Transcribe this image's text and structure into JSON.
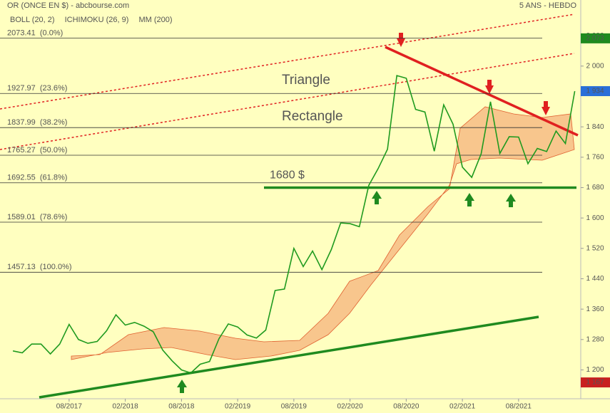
{
  "chart_data": {
    "type": "line",
    "title": "OR (ONCE EN $) - abcbourse.com",
    "subtitle": "5 ANS - HEBDO",
    "indicators": [
      {
        "name": "BOLL (20, 2)",
        "color": "#2a3fcf"
      },
      {
        "name": "ICHIMOKU (26, 9)",
        "color": "#2a3fcf"
      },
      {
        "name": "MM (200)",
        "color": "#e02020"
      }
    ],
    "x": [
      "2017-02",
      "2017-03",
      "2017-04",
      "2017-05",
      "2017-06",
      "2017-07",
      "2017-08",
      "2017-09",
      "2017-10",
      "2017-11",
      "2017-12",
      "2018-01",
      "2018-02",
      "2018-03",
      "2018-04",
      "2018-05",
      "2018-06",
      "2018-07",
      "2018-08",
      "2018-09",
      "2018-10",
      "2018-11",
      "2018-12",
      "2019-01",
      "2019-02",
      "2019-03",
      "2019-04",
      "2019-05",
      "2019-06",
      "2019-07",
      "2019-08",
      "2019-09",
      "2019-10",
      "2019-11",
      "2019-12",
      "2020-01",
      "2020-02",
      "2020-03",
      "2020-04",
      "2020-05",
      "2020-06",
      "2020-07",
      "2020-08",
      "2020-09",
      "2020-10",
      "2020-11",
      "2020-12",
      "2021-01",
      "2021-02",
      "2021-03",
      "2021-04",
      "2021-05",
      "2021-06",
      "2021-07",
      "2021-08",
      "2021-09",
      "2021-10",
      "2021-11",
      "2021-12",
      "2022-01",
      "2022-02"
    ],
    "series": [
      {
        "name": "OR",
        "color": "#1f9a1f",
        "values": [
          1250,
          1245,
          1268,
          1268,
          1242,
          1268,
          1320,
          1280,
          1270,
          1275,
          1303,
          1345,
          1318,
          1325,
          1315,
          1300,
          1252,
          1224,
          1200,
          1192,
          1215,
          1222,
          1282,
          1321,
          1313,
          1292,
          1284,
          1305,
          1409,
          1413,
          1520,
          1472,
          1513,
          1464,
          1517,
          1587,
          1585,
          1577,
          1686,
          1730,
          1781,
          1975,
          1968,
          1886,
          1879,
          1776,
          1898,
          1847,
          1734,
          1707,
          1769,
          1906,
          1770,
          1814,
          1813,
          1743,
          1783,
          1775,
          1829,
          1796,
          1934
        ]
      }
    ],
    "xlim": [
      "2017-01",
      "2022-02"
    ],
    "xticks": [
      {
        "value": "2017-08",
        "label": "08/2017"
      },
      {
        "value": "2018-02",
        "label": "02/2018"
      },
      {
        "value": "2018-08",
        "label": "08/2018"
      },
      {
        "value": "2019-02",
        "label": "02/2019"
      },
      {
        "value": "2019-08",
        "label": "08/2019"
      },
      {
        "value": "2020-02",
        "label": "02/2020"
      },
      {
        "value": "2020-08",
        "label": "08/2020"
      },
      {
        "value": "2021-02",
        "label": "02/2021"
      },
      {
        "value": "2021-08",
        "label": "08/2021"
      }
    ],
    "ylim": [
      1124,
      2174
    ],
    "yticks": [
      {
        "value": 1200,
        "label": "1 200"
      },
      {
        "value": 1280,
        "label": "1 280"
      },
      {
        "value": 1360,
        "label": "1 360"
      },
      {
        "value": 1440,
        "label": "1 440"
      },
      {
        "value": 1520,
        "label": "1 520"
      },
      {
        "value": 1600,
        "label": "1 600"
      },
      {
        "value": 1680,
        "label": "1 680"
      },
      {
        "value": 1760,
        "label": "1 760"
      },
      {
        "value": 1840,
        "label": "1 840"
      },
      {
        "value": 2000,
        "label": "2 000"
      },
      {
        "value": 2080,
        "label": "2 080"
      }
    ],
    "fib_levels": [
      {
        "value": 2073.41,
        "label": "2073.41  (0.0%)"
      },
      {
        "value": 1927.97,
        "label": "1927.97  (23.6%)"
      },
      {
        "value": 1837.99,
        "label": "1837.99  (38.2%)"
      },
      {
        "value": 1765.27,
        "label": "1765.27  (50.0%)"
      },
      {
        "value": 1692.55,
        "label": "1692.55  (61.8%)"
      },
      {
        "value": 1589.01,
        "label": "1589.01  (78.6%)"
      },
      {
        "value": 1457.13,
        "label": "1457.13  (100.0%)"
      }
    ],
    "price_badges": [
      {
        "value": 2073,
        "label": "2 073",
        "color": "#1f8a1f"
      },
      {
        "value": 1934,
        "label": "1 934",
        "color": "#2a6fd8"
      },
      {
        "value": 1167,
        "label": "1 167",
        "color": "#c82020"
      }
    ],
    "support": {
      "value": 1680,
      "label": "1680 $",
      "color": "#1f8a1f"
    },
    "annotations": [
      {
        "text": "Triangle",
        "color": "#e02020"
      },
      {
        "text": "Rectangle",
        "color": "#1f8a1f"
      }
    ]
  }
}
